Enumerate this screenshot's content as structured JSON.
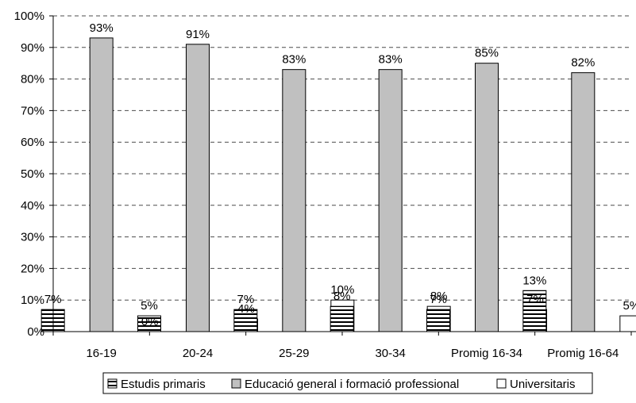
{
  "chart_data": {
    "type": "bar",
    "title": "",
    "xlabel": "",
    "ylabel": "",
    "categories": [
      "16-19",
      "20-24",
      "25-29",
      "30-34",
      "Promig 16-34",
      "Promig 16-64"
    ],
    "series": [
      {
        "name": "Estudis primaris",
        "values": [
          7,
          5,
          7,
          8,
          7,
          13
        ],
        "labels": [
          "7%",
          "5%",
          "7%",
          "8%",
          "7%",
          "13%"
        ],
        "color": "#ffffff",
        "pattern": "horizontal-stripes"
      },
      {
        "name": "Educació general i formació professional",
        "values": [
          93,
          91,
          83,
          83,
          85,
          82
        ],
        "labels": [
          "93%",
          "91%",
          "83%",
          "83%",
          "85%",
          "82%"
        ],
        "color": "#c0c0c0",
        "pattern": "solid"
      },
      {
        "name": "Universitaris",
        "values": [
          0,
          4,
          10,
          8,
          7,
          5
        ],
        "labels": [
          "0%",
          "4%",
          "10%",
          "8%",
          "7%",
          "5%"
        ],
        "color": "#ffffff",
        "pattern": "solid"
      }
    ],
    "ylim": [
      0,
      100
    ],
    "yticks": [
      "0%",
      "10%",
      "20%",
      "30%",
      "40%",
      "50%",
      "60%",
      "70%",
      "80%",
      "90%",
      "100%"
    ],
    "grid": true,
    "legend_position": "bottom"
  }
}
